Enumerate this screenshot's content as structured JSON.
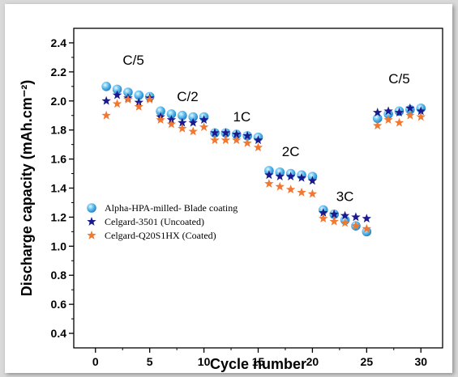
{
  "chart_data": {
    "type": "scatter",
    "xlabel": "Cycle number",
    "ylabel": "Discharge capacity (mAh.cm⁻²)",
    "xlim": [
      -2,
      32
    ],
    "ylim": [
      0.3,
      2.5
    ],
    "xticks": [
      0,
      5,
      10,
      15,
      20,
      25,
      30
    ],
    "yticks": [
      0.4,
      0.6,
      0.8,
      1.0,
      1.2,
      1.4,
      1.6,
      1.8,
      2.0,
      2.2,
      2.4
    ],
    "xtick_labels": [
      "0",
      "5",
      "10",
      "15",
      "20",
      "25",
      "30"
    ],
    "ytick_labels": [
      "0.4",
      "0.6",
      "0.8",
      "1.0",
      "1.2",
      "1.4",
      "1.6",
      "1.8",
      "2.0",
      "2.2",
      "2.4"
    ],
    "grid": false,
    "legend_position": "lower-left",
    "annotations": [
      {
        "text": "C/5",
        "x": 3.5,
        "y": 2.25
      },
      {
        "text": "C/2",
        "x": 8.5,
        "y": 2.0
      },
      {
        "text": "1C",
        "x": 13.5,
        "y": 1.86
      },
      {
        "text": "2C",
        "x": 18.0,
        "y": 1.62
      },
      {
        "text": "3C",
        "x": 23.0,
        "y": 1.31
      },
      {
        "text": "C/5",
        "x": 28.0,
        "y": 2.12
      }
    ],
    "series": [
      {
        "name": "Alpha-HPA-milled- Blade coating",
        "marker": "circle",
        "color": "#3aa6e8",
        "x": [
          1,
          2,
          3,
          4,
          5,
          6,
          7,
          8,
          9,
          10,
          11,
          12,
          13,
          14,
          15,
          16,
          17,
          18,
          19,
          20,
          21,
          22,
          23,
          24,
          25,
          26,
          27,
          28,
          29,
          30
        ],
        "y": [
          2.1,
          2.08,
          2.06,
          2.04,
          2.03,
          1.93,
          1.91,
          1.9,
          1.89,
          1.89,
          1.78,
          1.78,
          1.77,
          1.76,
          1.75,
          1.52,
          1.51,
          1.5,
          1.49,
          1.48,
          1.25,
          1.22,
          1.18,
          1.14,
          1.1,
          1.88,
          1.91,
          1.93,
          1.94,
          1.95
        ]
      },
      {
        "name": "Celgard-3501 (Uncoated)",
        "marker": "star",
        "color": "#1a1a8c",
        "x": [
          1,
          2,
          3,
          4,
          5,
          6,
          7,
          8,
          9,
          10,
          11,
          12,
          13,
          14,
          15,
          16,
          17,
          18,
          19,
          20,
          21,
          22,
          23,
          24,
          25,
          26,
          27,
          28,
          29,
          30
        ],
        "y": [
          2.0,
          2.04,
          2.02,
          1.99,
          2.02,
          1.89,
          1.87,
          1.85,
          1.85,
          1.87,
          1.78,
          1.78,
          1.77,
          1.76,
          1.73,
          1.49,
          1.48,
          1.48,
          1.47,
          1.45,
          1.23,
          1.22,
          1.21,
          1.2,
          1.19,
          1.92,
          1.93,
          1.92,
          1.95,
          1.93
        ]
      },
      {
        "name": "Celgard-Q20S1HX (Coated)",
        "marker": "star",
        "color": "#f07830",
        "x": [
          1,
          2,
          3,
          4,
          5,
          6,
          7,
          8,
          9,
          10,
          11,
          12,
          13,
          14,
          15,
          16,
          17,
          18,
          19,
          20,
          21,
          22,
          23,
          24,
          25,
          26,
          27,
          28,
          29,
          30
        ],
        "y": [
          1.9,
          1.98,
          2.01,
          1.96,
          2.01,
          1.87,
          1.84,
          1.81,
          1.79,
          1.82,
          1.73,
          1.73,
          1.73,
          1.71,
          1.68,
          1.43,
          1.41,
          1.39,
          1.37,
          1.36,
          1.19,
          1.17,
          1.16,
          1.14,
          1.12,
          1.83,
          1.87,
          1.85,
          1.9,
          1.89
        ]
      }
    ]
  }
}
